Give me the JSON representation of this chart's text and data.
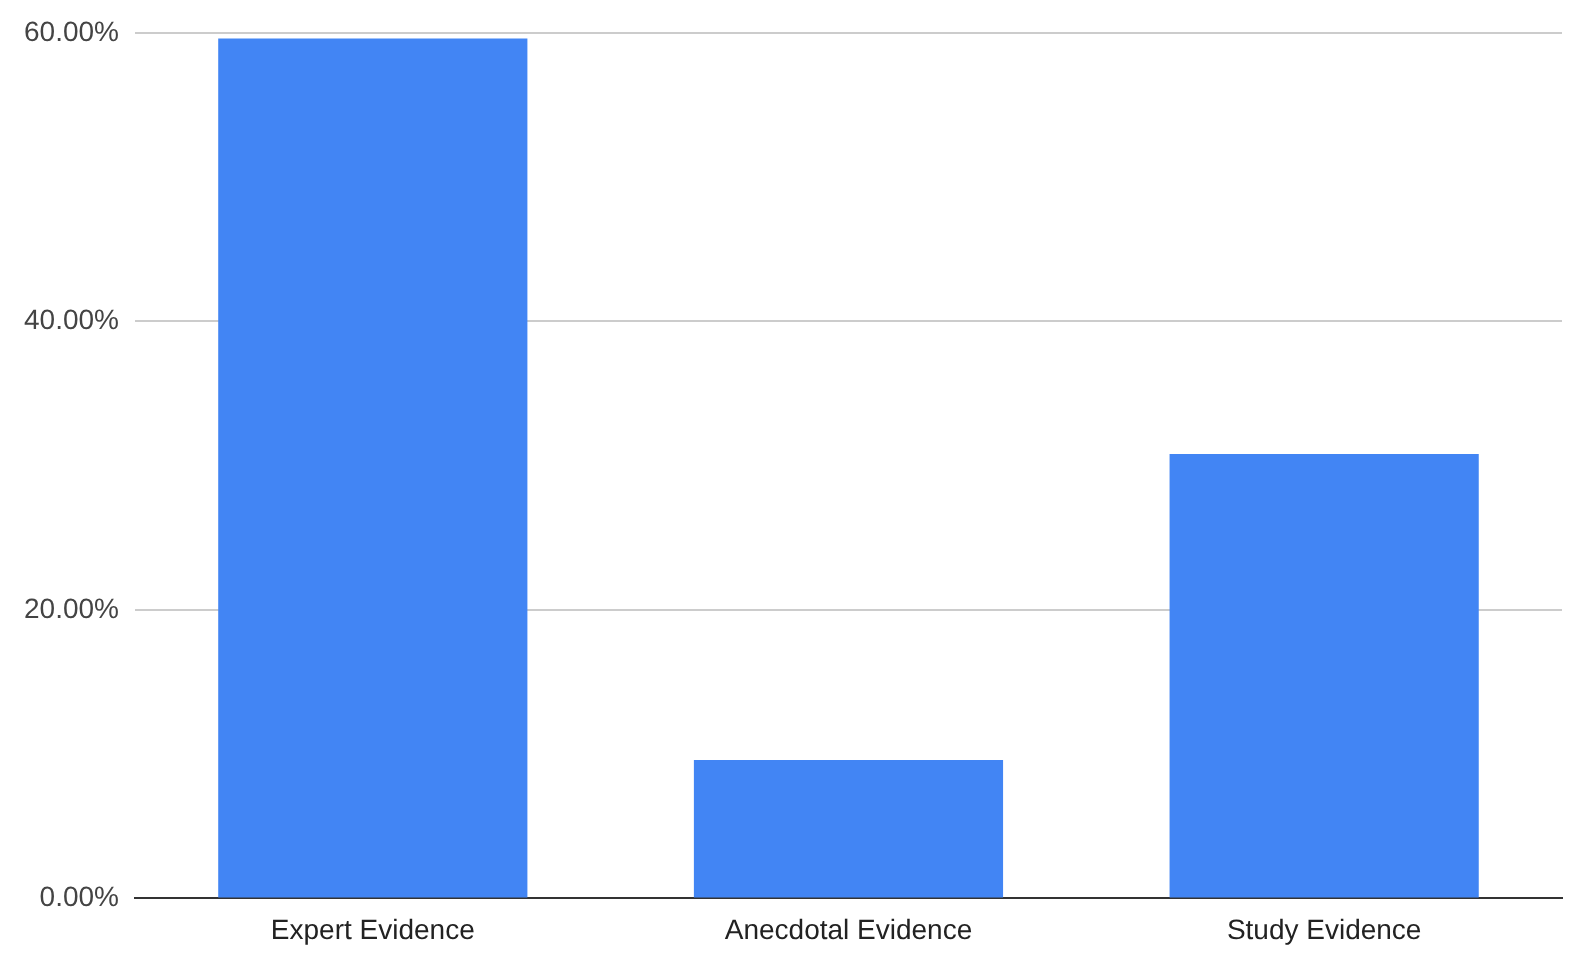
{
  "chart_data": {
    "type": "bar",
    "categories": [
      "Expert Evidence",
      "Anecdotal Evidence",
      "Study Evidence"
    ],
    "values": [
      59.6,
      9.6,
      30.8
    ],
    "color": "#4285f4",
    "ylim": [
      0,
      60
    ],
    "yticks": [
      {
        "value": 0,
        "label": "0.00%"
      },
      {
        "value": 20,
        "label": "20.00%"
      },
      {
        "value": 40,
        "label": "40.00%"
      },
      {
        "value": 60,
        "label": "60.00%"
      }
    ],
    "grid": "y",
    "legend": false
  }
}
